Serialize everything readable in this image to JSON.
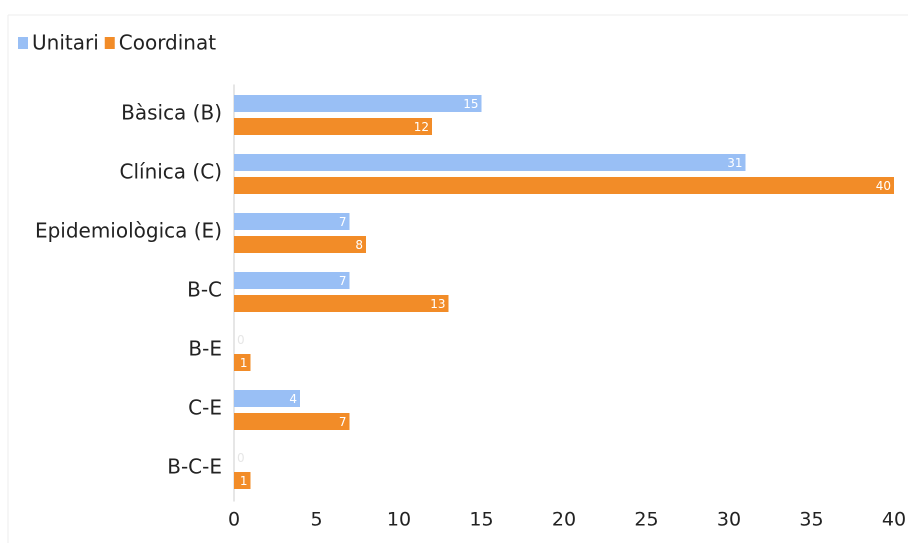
{
  "chart_data": {
    "type": "bar",
    "orientation": "horizontal",
    "categories": [
      "Bàsica (B)",
      "Clínica (C)",
      "Epidemiològica (E)",
      "B-C",
      "B-E",
      "C-E",
      "B-C-E"
    ],
    "series": [
      {
        "name": "Unitari",
        "color": "#99bff5",
        "values": [
          15,
          31,
          7,
          7,
          0,
          4,
          0
        ]
      },
      {
        "name": "Coordinat",
        "color": "#f28c28",
        "values": [
          12,
          40,
          8,
          13,
          1,
          7,
          1
        ]
      }
    ],
    "xlim": [
      0,
      40
    ],
    "xticks": [
      0,
      5,
      10,
      15,
      20,
      25,
      30,
      35,
      40
    ],
    "grid": false,
    "legend": "top-left"
  }
}
